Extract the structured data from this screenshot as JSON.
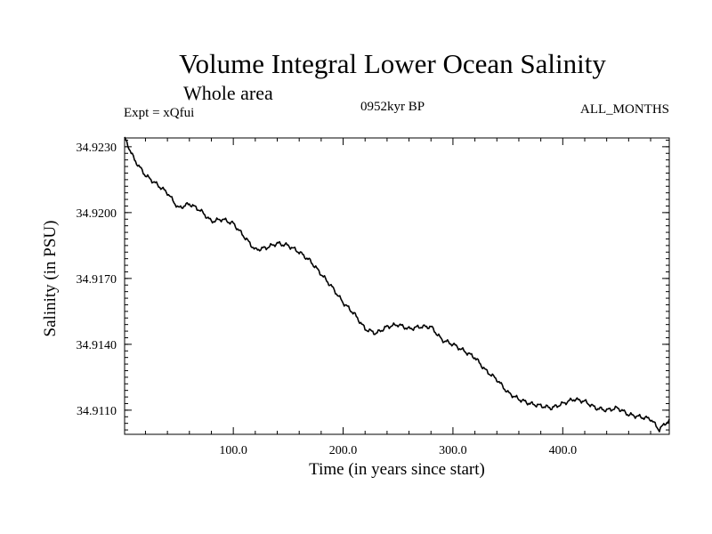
{
  "chart_data": {
    "type": "line",
    "title": "Volume Integral Lower Ocean Salinity",
    "subtitle": "Whole area",
    "experiment_label": "Expt = xQfui",
    "period_label": "0952kyr BP",
    "months_label": "ALL_MONTHS",
    "xlabel": "Time (in years since start)",
    "ylabel": "Salinity (in PSU)",
    "xlim": [
      1,
      497
    ],
    "ylim": [
      34.9099,
      34.9234
    ],
    "x_ticks": [
      100,
      200,
      300,
      400
    ],
    "x_tick_labels": [
      "100.0",
      "200.0",
      "300.0",
      "400.0"
    ],
    "y_ticks": [
      34.911,
      34.914,
      34.917,
      34.92,
      34.923
    ],
    "y_tick_labels": [
      "34.9110",
      "34.9140",
      "34.9170",
      "34.9200",
      "34.9230"
    ],
    "grid": false,
    "series": [
      {
        "name": "Salinity",
        "color": "#000000",
        "x": [
          1,
          10,
          20,
          30,
          40,
          50,
          60,
          70,
          80,
          90,
          100,
          110,
          120,
          130,
          140,
          150,
          160,
          170,
          180,
          190,
          200,
          210,
          220,
          230,
          240,
          250,
          260,
          270,
          280,
          290,
          300,
          310,
          320,
          330,
          340,
          350,
          360,
          370,
          380,
          390,
          400,
          410,
          420,
          430,
          440,
          450,
          460,
          470,
          480,
          488,
          493,
          497
        ],
        "values": [
          34.9234,
          34.9224,
          34.9217,
          34.9213,
          34.9209,
          34.9202,
          34.9204,
          34.9201,
          34.9196,
          34.9197,
          34.9195,
          34.9189,
          34.9183,
          34.9184,
          34.9186,
          34.9185,
          34.9182,
          34.9178,
          34.9172,
          34.9166,
          34.9159,
          34.9154,
          34.9147,
          34.9145,
          34.9148,
          34.9149,
          34.9147,
          34.9148,
          34.9148,
          34.9142,
          34.914,
          34.9137,
          34.9134,
          34.9128,
          34.9124,
          34.9118,
          34.9115,
          34.9113,
          34.9112,
          34.9111,
          34.9113,
          34.9115,
          34.9114,
          34.9111,
          34.911,
          34.9111,
          34.9108,
          34.9107,
          34.9106,
          34.9101,
          34.9104,
          34.9105
        ]
      }
    ]
  }
}
